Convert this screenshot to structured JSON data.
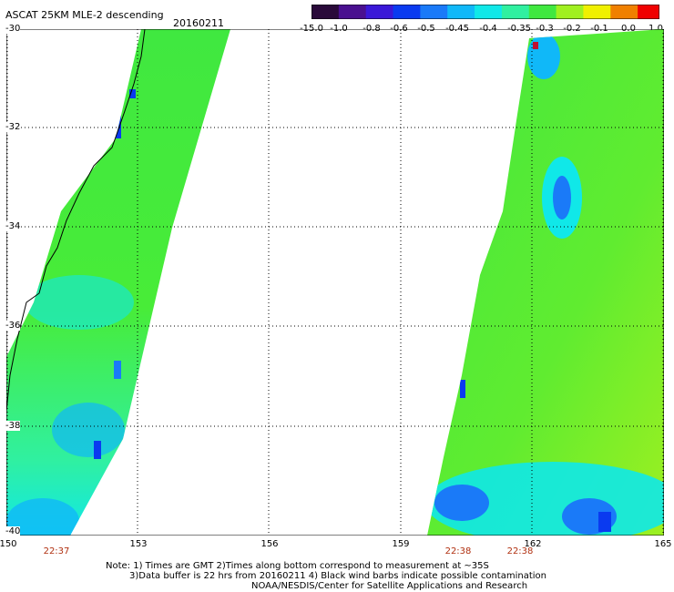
{
  "header": {
    "title": "ASCAT 25KM MLE-2 descending",
    "date": "20160211"
  },
  "colorbar": {
    "tick_labels": [
      "-15.0",
      "-1.0",
      "-0.8",
      "-0.6",
      "-0.5",
      "-0.45",
      "-0.4",
      "-0.35",
      "-0.3",
      "-0.2",
      "-0.1",
      "0.0",
      "1.0"
    ],
    "colors": [
      "#2a0a3a",
      "#4a1090",
      "#3a18d8",
      "#0a3af0",
      "#1a7af8",
      "#10b8f8",
      "#10e8e8",
      "#30f0a0",
      "#40e840",
      "#a0f020",
      "#f0f000",
      "#f08000",
      "#f00000"
    ]
  },
  "map": {
    "lat_labels": [
      "-30",
      "-32",
      "-34",
      "-36",
      "-38",
      "-40"
    ],
    "lon_labels": [
      "150",
      "153",
      "156",
      "159",
      "162",
      "165"
    ],
    "lat_range": [
      -40,
      -30
    ],
    "lon_range": [
      150,
      165
    ],
    "grid": "dotted"
  },
  "swath_times": [
    "22:37",
    "22:38",
    "22:38"
  ],
  "notes": [
    "Note: 1) Times are GMT 2)Times along bottom correspond to measurement at ~35S",
    "3)Data buffer is 22 hrs from 20160211 4) Black wind barbs indicate possible contamination",
    "NOAA/NESDIS/Center for Satellite Applications and Research"
  ]
}
